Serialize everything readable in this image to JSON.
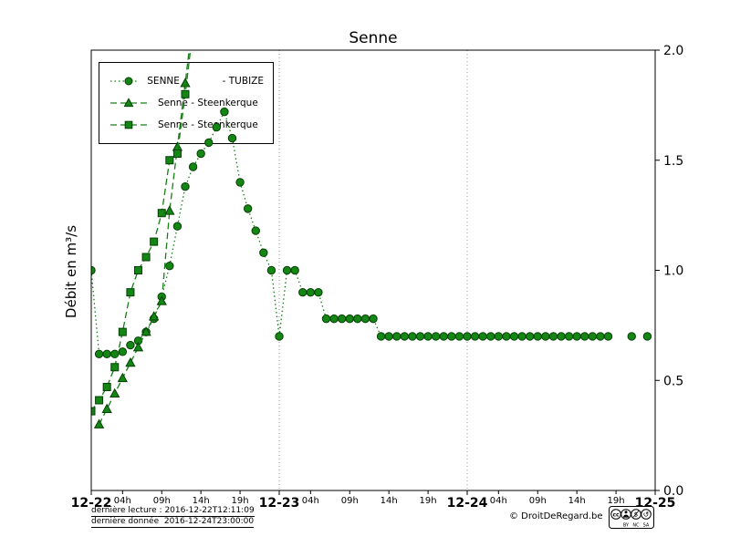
{
  "chart_data": {
    "type": "line",
    "title": "Senne",
    "xlabel": "",
    "ylabel": "Débit en m³/s",
    "ylim": [
      0.0,
      2.0
    ],
    "x_span_hours": 72,
    "legend_position": "upper-left",
    "grid": "vertical dotted lines at day boundaries",
    "color": "#177d17",
    "marker_face": "#138613",
    "marker_edge": "#053f05",
    "grid_color": "#999999",
    "grid_hours": [
      24,
      48
    ],
    "y_ticks": [
      {
        "value": 0.0,
        "label": "0.0"
      },
      {
        "value": 0.5,
        "label": "0.5"
      },
      {
        "value": 1.0,
        "label": "1.0"
      },
      {
        "value": 1.5,
        "label": "1.5"
      },
      {
        "value": 2.0,
        "label": "2.0"
      }
    ],
    "x_day_ticks": [
      {
        "hour": 0,
        "label": "12-22"
      },
      {
        "hour": 24,
        "label": "12-23"
      },
      {
        "hour": 48,
        "label": "12-24"
      },
      {
        "hour": 72,
        "label": "12-25"
      }
    ],
    "x_hour_ticks": [
      {
        "hour": 4,
        "label": "04h"
      },
      {
        "hour": 9,
        "label": "09h"
      },
      {
        "hour": 14,
        "label": "14h"
      },
      {
        "hour": 19,
        "label": "19h"
      },
      {
        "hour": 28,
        "label": "04h"
      },
      {
        "hour": 33,
        "label": "09h"
      },
      {
        "hour": 38,
        "label": "14h"
      },
      {
        "hour": 43,
        "label": "19h"
      },
      {
        "hour": 52,
        "label": "04h"
      },
      {
        "hour": 57,
        "label": "09h"
      },
      {
        "hour": 62,
        "label": "14h"
      },
      {
        "hour": 67,
        "label": "19h"
      }
    ],
    "series": [
      {
        "name": "SENNE              - TUBIZE",
        "marker": "circle",
        "linestyle": "dotted",
        "start_hour": 0,
        "step_hours": 1,
        "values": [
          1.0,
          0.62,
          0.62,
          0.62,
          0.63,
          0.66,
          0.68,
          0.72,
          0.78,
          0.88,
          1.02,
          1.2,
          1.38,
          1.47,
          1.53,
          1.58,
          1.65,
          1.72,
          1.6,
          1.4,
          1.28,
          1.18,
          1.08,
          1.0,
          0.7,
          1.0,
          1.0,
          0.9,
          0.9,
          0.9,
          0.78,
          0.78,
          0.78,
          0.78,
          0.78,
          0.78,
          0.78,
          0.7,
          0.7,
          0.7,
          0.7,
          0.7,
          0.7,
          0.7,
          0.7,
          0.7,
          0.7,
          0.7,
          0.7,
          0.7,
          0.7,
          0.7,
          0.7,
          0.7,
          0.7,
          0.7,
          0.7,
          0.7,
          0.7,
          0.7,
          0.7,
          0.7,
          0.7,
          0.7,
          0.7,
          0.7,
          0.7,
          null,
          null,
          0.7,
          null,
          0.7
        ]
      },
      {
        "name": "Senne - Steenkerque",
        "marker": "triangle",
        "linestyle": "dashed",
        "start_hour": 1,
        "step_hours": 1,
        "values": [
          0.3,
          0.37,
          0.44,
          0.51,
          0.58,
          0.65,
          0.72,
          0.79,
          0.86,
          1.27,
          1.56,
          1.85,
          2.15
        ]
      },
      {
        "name": "Senne - Steenkerque",
        "marker": "square",
        "linestyle": "dashed",
        "start_hour": 0,
        "step_hours": 1,
        "values": [
          0.36,
          0.41,
          0.47,
          0.56,
          0.72,
          0.9,
          1.0,
          1.06,
          1.13,
          1.26,
          1.5,
          1.53,
          1.8,
          2.1
        ]
      }
    ]
  },
  "footer": {
    "last_reading": "dernière lecture : 2016-12-22T12:11:09",
    "last_data": "dernière donnée  2016-12-24T23:00:00",
    "copyright": "© DroitDeRegard.be",
    "license": {
      "cc": "cc",
      "by": "BY",
      "nc": "NC",
      "sa": "SA",
      "nc_icon": "$",
      "sa_icon": "↺"
    }
  }
}
